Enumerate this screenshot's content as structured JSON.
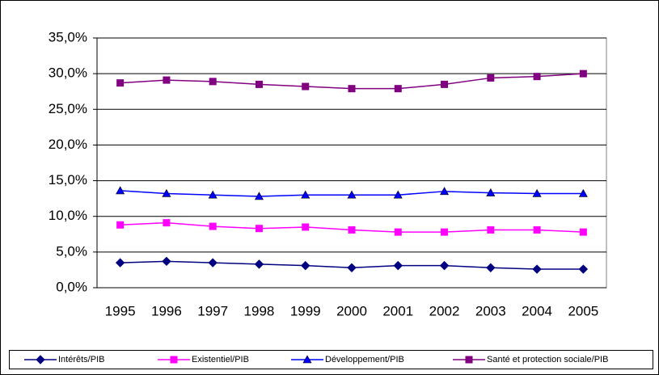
{
  "chart_data": {
    "type": "line",
    "categories": [
      "1995",
      "1996",
      "1997",
      "1998",
      "1999",
      "2000",
      "2001",
      "2002",
      "2003",
      "2004",
      "2005"
    ],
    "series": [
      {
        "name": "Intérêts/PIB",
        "color": "#000080",
        "marker": "diamond",
        "values": [
          3.5,
          3.7,
          3.5,
          3.3,
          3.1,
          2.8,
          3.1,
          3.1,
          2.8,
          2.6,
          2.6
        ]
      },
      {
        "name": "Existentiel/PIB",
        "color": "#ff00ff",
        "marker": "square",
        "values": [
          8.8,
          9.1,
          8.6,
          8.3,
          8.5,
          8.1,
          7.8,
          7.8,
          8.1,
          8.1,
          7.8
        ]
      },
      {
        "name": "Développement/PIB",
        "color": "#0000ff",
        "marker": "triangle",
        "values": [
          13.6,
          13.2,
          13.0,
          12.8,
          13.0,
          13.0,
          13.0,
          13.5,
          13.3,
          13.2,
          13.2
        ]
      },
      {
        "name": "Santé et protection sociale/PIB",
        "color": "#800080",
        "marker": "square",
        "values": [
          28.7,
          29.1,
          28.9,
          28.5,
          28.2,
          27.9,
          27.9,
          28.5,
          29.4,
          29.6,
          30.0
        ]
      }
    ],
    "ylim": [
      0,
      35
    ],
    "yticks": [
      {
        "value": 0,
        "label": "0,0%"
      },
      {
        "value": 5,
        "label": "5,0%"
      },
      {
        "value": 10,
        "label": "10,0%"
      },
      {
        "value": 15,
        "label": "15,0%"
      },
      {
        "value": 20,
        "label": "20,0%"
      },
      {
        "value": 25,
        "label": "25,0%"
      },
      {
        "value": 30,
        "label": "30,0%"
      },
      {
        "value": 35,
        "label": "35,0%"
      }
    ],
    "grid": true,
    "legend": "bottom"
  }
}
